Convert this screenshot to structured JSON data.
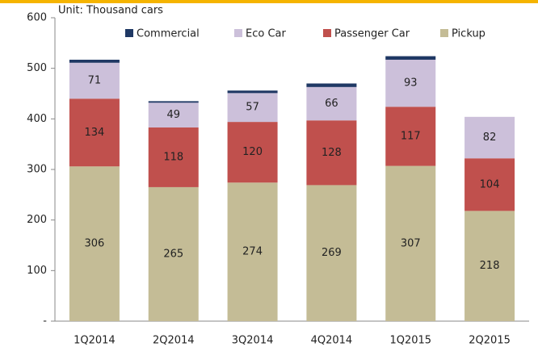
{
  "chart_data": {
    "type": "stacked_bar",
    "subtitle": "Unit: Thousand  cars",
    "categories": [
      "1Q2014",
      "2Q2014",
      "3Q2014",
      "4Q2014",
      "1Q2015",
      "2Q2015"
    ],
    "series": [
      {
        "name": "Commercial",
        "color": "#1f3864",
        "values": [
          6,
          3,
          5,
          7,
          7,
          0
        ]
      },
      {
        "name": "Eco Car",
        "color": "#ccc0da",
        "values": [
          71,
          49,
          57,
          66,
          93,
          82
        ]
      },
      {
        "name": "Passenger Car",
        "color": "#c0504d",
        "values": [
          134,
          118,
          120,
          128,
          117,
          104
        ]
      },
      {
        "name": "Pickup",
        "color": "#c4bc96",
        "values": [
          306,
          265,
          274,
          269,
          307,
          218
        ]
      }
    ],
    "ylim": [
      0,
      600
    ],
    "yticks": [
      {
        "value": 0,
        "label": "-"
      },
      100,
      200,
      300,
      400,
      500,
      600
    ],
    "legend": "top"
  }
}
